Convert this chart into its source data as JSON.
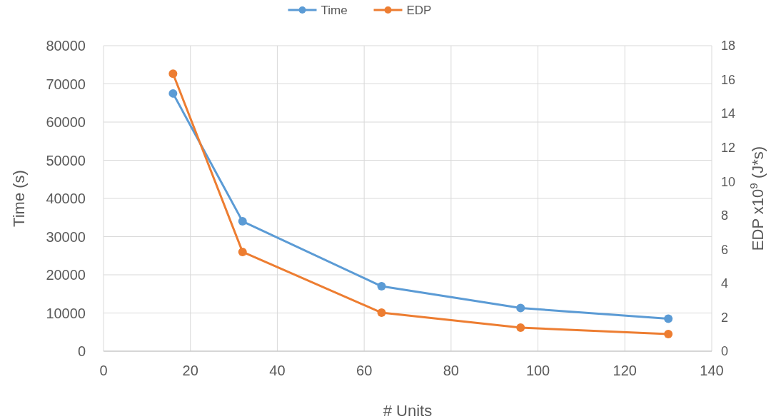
{
  "chart_data": {
    "type": "line",
    "xlabel": "# Units",
    "ylabel": "Time (s)",
    "y2label": "EDP x10$^{9}$ (J*s)",
    "x": [
      16,
      32,
      64,
      96,
      130
    ],
    "series": [
      {
        "name": "Time",
        "color": "#5b9bd5",
        "values": [
          67500,
          34000,
          17000,
          11300,
          8500
        ]
      },
      {
        "name": "EDP",
        "color": "#ed7d31",
        "axis": "y2",
        "values": [
          16.35,
          5.85,
          2.27,
          1.39,
          1.01
        ]
      }
    ],
    "xlim": [
      0,
      140
    ],
    "xticks": [
      0,
      20,
      40,
      60,
      80,
      100,
      120,
      140
    ],
    "ylim": [
      0,
      80000
    ],
    "yticks": [
      0,
      10000,
      20000,
      30000,
      40000,
      50000,
      60000,
      70000,
      80000
    ],
    "y2lim": [
      0,
      18
    ],
    "y2ticks": [
      0,
      2,
      4,
      6,
      8,
      10,
      12,
      14,
      16,
      18
    ],
    "grid": true,
    "legend": "top",
    "marker": "circle",
    "line_style": "solid"
  }
}
